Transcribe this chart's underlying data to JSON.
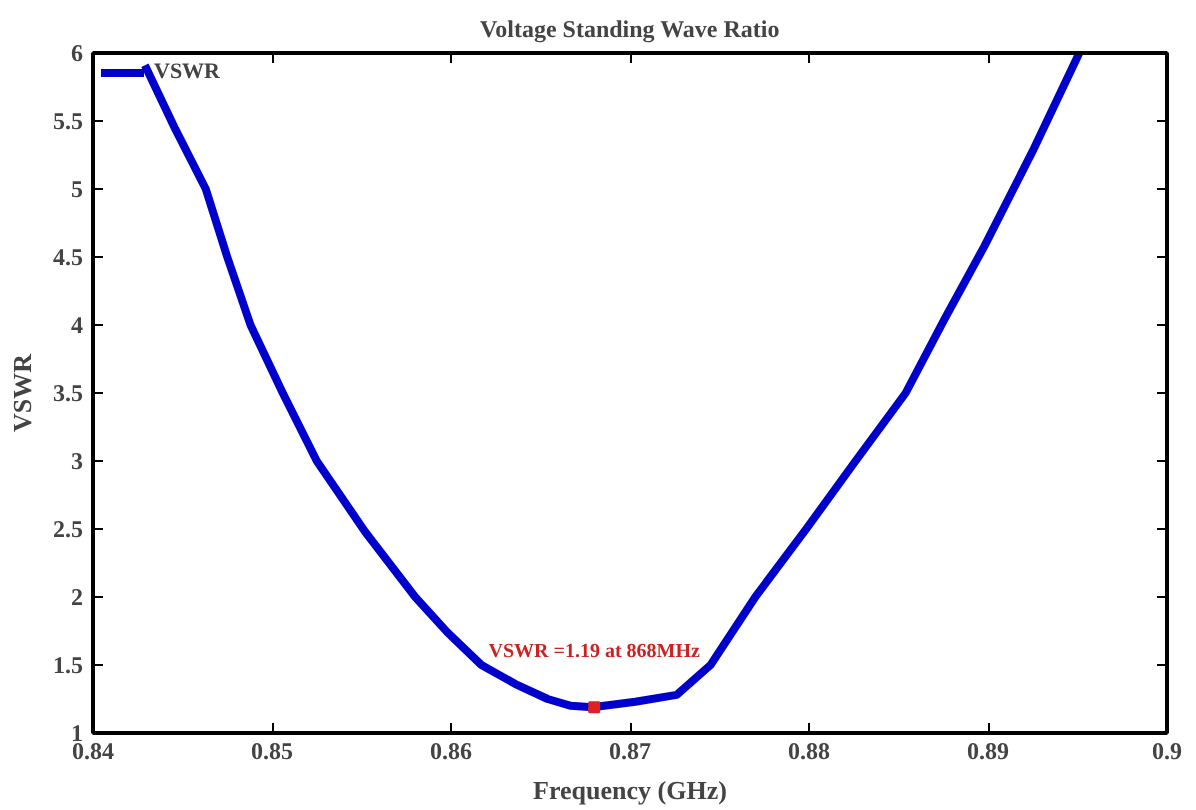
{
  "chart_data": {
    "type": "line",
    "title": "Voltage Standing Wave Ratio",
    "xlabel": "Frequency (GHz)",
    "ylabel": "VSWR",
    "xlim": [
      0.84,
      0.9
    ],
    "xticks": [
      0.84,
      0.85,
      0.86,
      0.87,
      0.88,
      0.89,
      0.9
    ],
    "ylim": [
      1,
      6
    ],
    "yticks": [
      1,
      1.5,
      2,
      2.5,
      3,
      3.5,
      4,
      4.5,
      5,
      5.5,
      6
    ],
    "grid": false,
    "legend": "top left",
    "series": [
      {
        "name": "VSWR",
        "color": "#0000cc",
        "x": [
          0.8429,
          0.8446,
          0.8463,
          0.8475,
          0.8488,
          0.8506,
          0.8525,
          0.8552,
          0.858,
          0.8598,
          0.8617,
          0.8636,
          0.8654,
          0.8667,
          0.8679,
          0.8703,
          0.8726,
          0.8745,
          0.877,
          0.8799,
          0.8826,
          0.8854,
          0.8876,
          0.8898,
          0.8925,
          0.8951
        ],
        "values": [
          5.91,
          5.44,
          5.0,
          4.5,
          4.0,
          3.5,
          3.0,
          2.48,
          2.0,
          1.74,
          1.5,
          1.36,
          1.25,
          1.2,
          1.19,
          1.23,
          1.28,
          1.5,
          2.0,
          2.51,
          3.0,
          3.5,
          4.05,
          4.58,
          5.28,
          6.0
        ]
      }
    ],
    "annotations": [
      {
        "text": "VSWR =1.19 at 868MHz",
        "x": 0.868,
        "y": 1.19
      }
    ]
  }
}
